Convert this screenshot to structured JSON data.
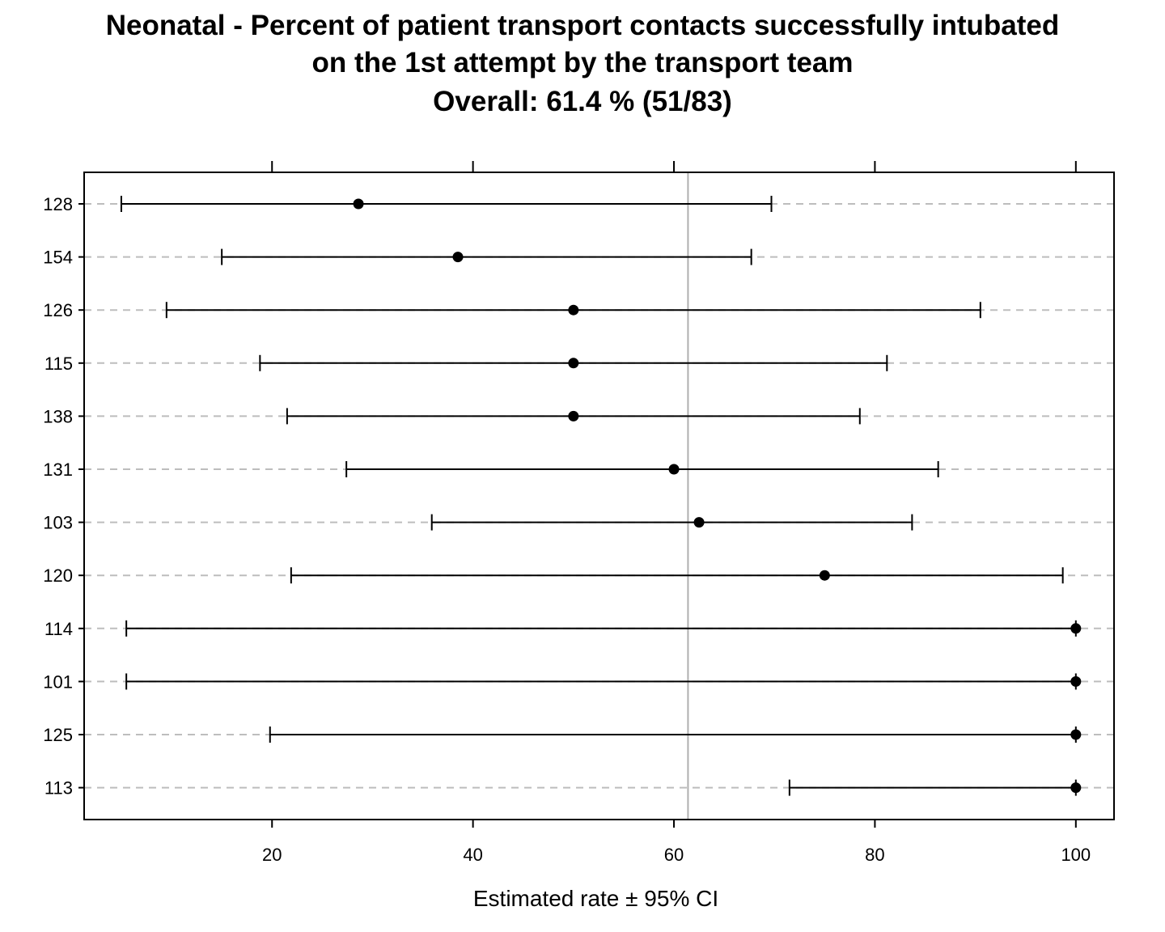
{
  "chart_data": {
    "type": "dotplot-with-error-bars",
    "title_lines": [
      "Neonatal - Percent of patient transport contacts successfully intubated",
      "on the 1st attempt by the transport team",
      "Overall:  61.4 %  (51/83)"
    ],
    "xlabel": "Estimated rate ±  95% CI",
    "xlim": [
      1.3,
      103.8
    ],
    "xticks": [
      20,
      40,
      60,
      80,
      100
    ],
    "reference_line": 61.4,
    "grid": "dashed horizontal lines per category",
    "categories": [
      "128",
      "154",
      "126",
      "115",
      "138",
      "131",
      "103",
      "120",
      "114",
      "101",
      "125",
      "113"
    ],
    "estimates": [
      28.6,
      38.5,
      50.0,
      50.0,
      50.0,
      60.0,
      62.5,
      75.0,
      100.0,
      100.0,
      100.0,
      100.0
    ],
    "lower": [
      5.0,
      15.0,
      9.5,
      18.8,
      21.5,
      27.4,
      35.9,
      21.9,
      5.5,
      5.5,
      19.8,
      71.5
    ],
    "upper": [
      69.7,
      67.7,
      90.5,
      81.2,
      78.5,
      86.3,
      83.7,
      98.7,
      100.0,
      100.0,
      100.0,
      100.0
    ]
  }
}
